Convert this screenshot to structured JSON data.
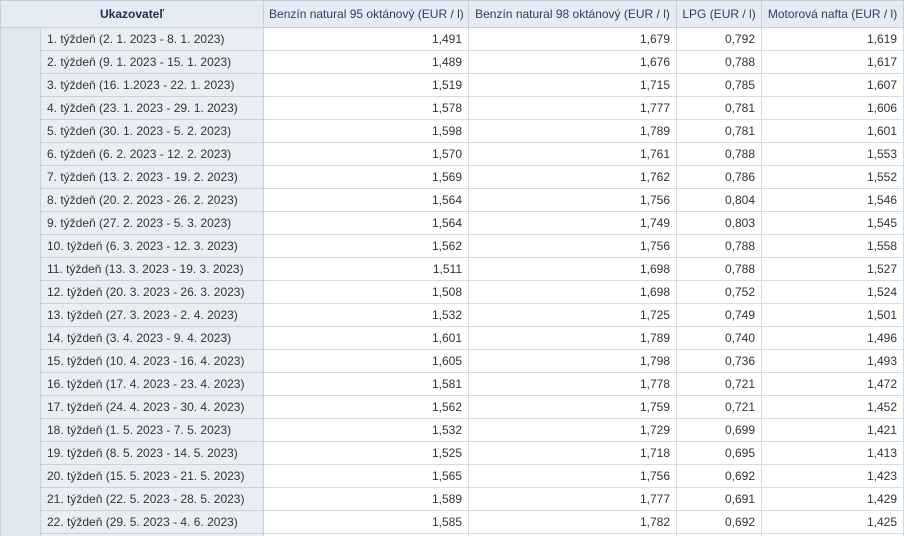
{
  "table": {
    "header": [
      "Ukazovateľ",
      "Benzín natural 95 oktánový (EUR / l)",
      "Benzín natural 98 oktánový (EUR / l)",
      "LPG (EUR / l)",
      "Motorová nafta (EUR / l)"
    ],
    "rows": [
      [
        "1. týždeň (2. 1. 2023 - 8. 1. 2023)",
        "1,491",
        "1,679",
        "0,792",
        "1,619"
      ],
      [
        "2. týždeň (9. 1. 2023 - 15. 1. 2023)",
        "1,489",
        "1,676",
        "0,788",
        "1,617"
      ],
      [
        "3. týždeň (16. 1.2023 - 22. 1. 2023)",
        "1,519",
        "1,715",
        "0,785",
        "1,607"
      ],
      [
        "4. týždeň (23. 1. 2023 - 29. 1. 2023)",
        "1,578",
        "1,777",
        "0,781",
        "1,606"
      ],
      [
        "5. týždeň (30. 1. 2023 - 5. 2. 2023)",
        "1,598",
        "1,789",
        "0,781",
        "1,601"
      ],
      [
        "6. týždeň (6. 2. 2023 - 12. 2. 2023)",
        "1,570",
        "1,761",
        "0,788",
        "1,553"
      ],
      [
        "7. týždeň (13. 2. 2023 - 19. 2. 2023)",
        "1,569",
        "1,762",
        "0,786",
        "1,552"
      ],
      [
        "8. týždeň (20. 2. 2023 - 26. 2. 2023)",
        "1,564",
        "1,756",
        "0,804",
        "1,546"
      ],
      [
        "9. týždeň (27. 2. 2023 - 5. 3. 2023)",
        "1,564",
        "1,749",
        "0,803",
        "1,545"
      ],
      [
        "10. týždeň (6. 3. 2023 - 12. 3. 2023)",
        "1,562",
        "1,756",
        "0,788",
        "1,558"
      ],
      [
        "11. týždeň (13. 3. 2023 - 19. 3. 2023)",
        "1,511",
        "1,698",
        "0,788",
        "1,527"
      ],
      [
        "12. týždeň (20. 3. 2023 - 26. 3. 2023)",
        "1,508",
        "1,698",
        "0,752",
        "1,524"
      ],
      [
        "13. týždeň (27. 3. 2023 - 2. 4. 2023)",
        "1,532",
        "1,725",
        "0,749",
        "1,501"
      ],
      [
        "14. týždeň (3. 4. 2023 - 9. 4. 2023)",
        "1,601",
        "1,789",
        "0,740",
        "1,496"
      ],
      [
        "15. týždeň (10. 4. 2023 - 16. 4. 2023)",
        "1,605",
        "1,798",
        "0,736",
        "1,493"
      ],
      [
        "16. týždeň (17. 4. 2023 - 23. 4. 2023)",
        "1,581",
        "1,778",
        "0,721",
        "1,472"
      ],
      [
        "17. týždeň (24. 4. 2023 - 30. 4. 2023)",
        "1,562",
        "1,759",
        "0,721",
        "1,452"
      ],
      [
        "18. týždeň (1. 5. 2023 - 7. 5. 2023)",
        "1,532",
        "1,729",
        "0,699",
        "1,421"
      ],
      [
        "19. týždeň (8. 5. 2023 - 14. 5. 2023)",
        "1,525",
        "1,718",
        "0,695",
        "1,413"
      ],
      [
        "20. týždeň (15. 5. 2023 - 21. 5. 2023)",
        "1,565",
        "1,756",
        "0,692",
        "1,423"
      ],
      [
        "21. týždeň (22. 5. 2023 - 28. 5. 2023)",
        "1,589",
        "1,777",
        "0,691",
        "1,429"
      ],
      [
        "22. týždeň (29. 5. 2023 - 4. 6. 2023)",
        "1,585",
        "1,782",
        "0,692",
        "1,425"
      ]
    ]
  }
}
